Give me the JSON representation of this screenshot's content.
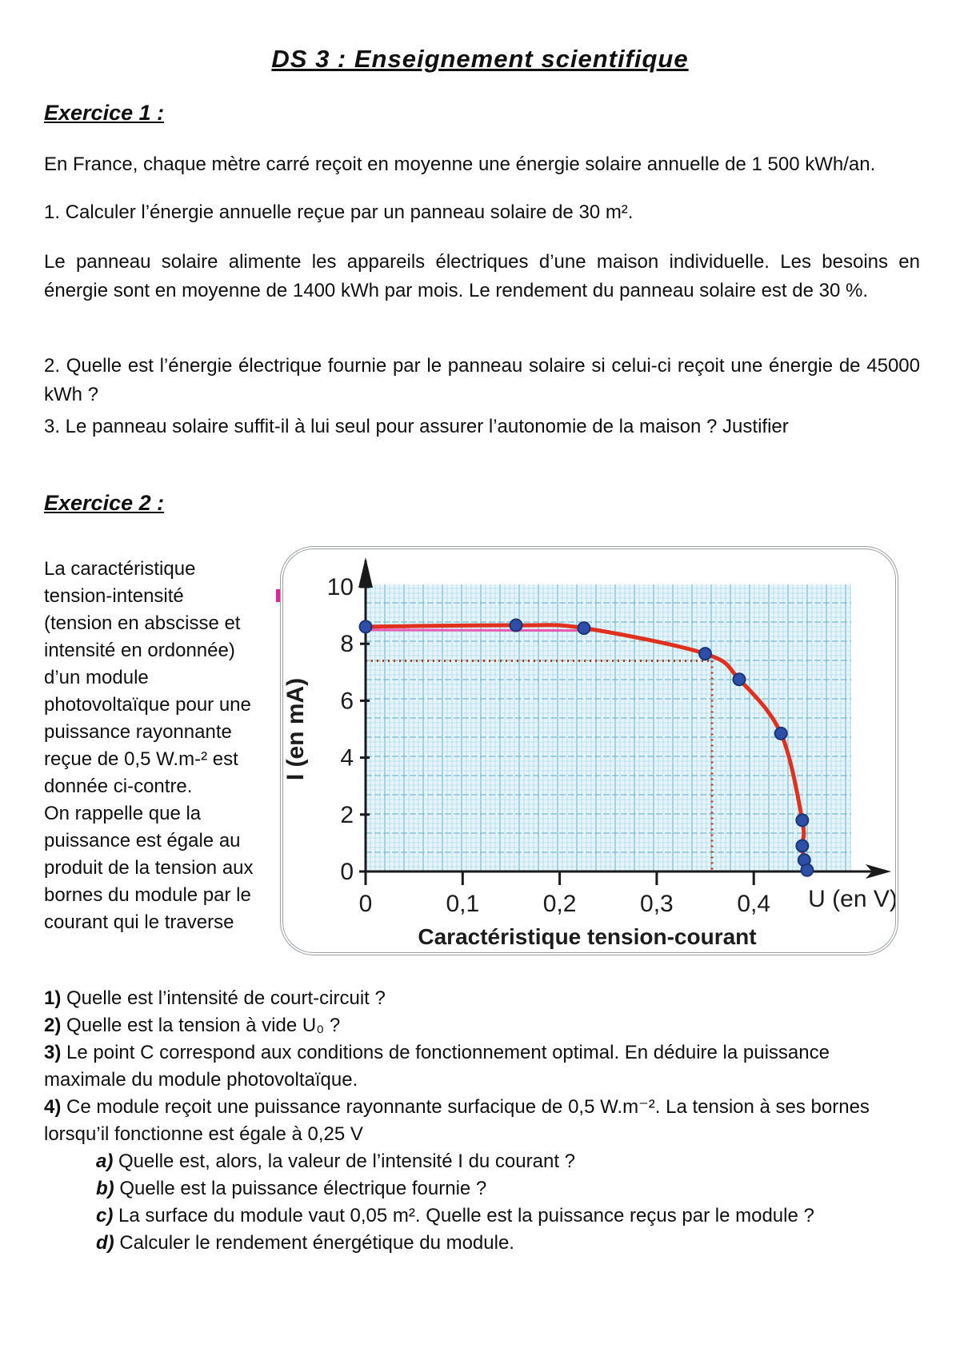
{
  "title": "DS 3 : Enseignement scientifique",
  "exercise1": {
    "heading": "Exercice 1 :",
    "intro": "En France, chaque mètre carré reçoit en moyenne une énergie solaire annuelle de 1 500 kWh/an.",
    "q1": "1. Calculer l’énergie annuelle reçue par un panneau solaire de 30 m².",
    "para2": "Le panneau solaire alimente les appareils électriques d’une maison individuelle. Les besoins en énergie sont en moyenne de 1400 kWh par mois. Le rendement du panneau solaire est de 30 %.",
    "q2": "2. Quelle est l’énergie électrique fournie par le panneau solaire si celui-ci reçoit une énergie de 45000 kWh ?",
    "q3": "3. Le panneau solaire suffit-il à lui seul pour assurer l’autonomie de la maison ? Justifier"
  },
  "exercise2": {
    "heading": "Exercice 2 :",
    "side_lines": [
      "La caractéristique",
      "tension-intensité",
      "(tension en abscisse et",
      "intensité en ordonnée)",
      "d’un module",
      "photovoltaïque pour une",
      "puissance rayonnante",
      "reçue de 0,5 W.m-² est",
      "donnée ci-contre.",
      "On rappelle que la",
      "puissance est égale au",
      "produit de la tension aux",
      "bornes du module par le",
      "courant qui le traverse"
    ],
    "questions": [
      {
        "prefix": "1)",
        "line1": "Quelle est l’intensité de court-circuit ?",
        "line2": ""
      },
      {
        "prefix": "2)",
        "line1": "Quelle est la tension à vide U₀ ?",
        "line2": ""
      },
      {
        "prefix": "3)",
        "line1": "Le point C correspond aux conditions de fonctionnement optimal. En déduire la puissance",
        "line2": "maximale du module photovoltaïque."
      },
      {
        "prefix": "4)",
        "line1": "Ce module reçoit une puissance rayonnante surfacique de 0,5 W.m⁻². La tension à ses bornes",
        "line2": "lorsqu’il fonctionne est égale à 0,25 V"
      }
    ],
    "subquestions": [
      {
        "prefix": "a)",
        "text": "Quelle est, alors, la valeur de l’intensité I du courant ?"
      },
      {
        "prefix": "b)",
        "text": "Quelle est la puissance électrique fournie ?"
      },
      {
        "prefix": "c)",
        "text": "La surface du module vaut 0,05 m². Quelle est la puissance reçus par le module ?"
      },
      {
        "prefix": "d)",
        "text": "Calculer le rendement énergétique du module."
      }
    ]
  },
  "chart_data": {
    "type": "line",
    "title": "Caractéristique tension-courant",
    "xlabel": "U (en V)",
    "ylabel": "I (en mA)",
    "xlim": [
      0,
      0.47
    ],
    "ylim": [
      0,
      10.5
    ],
    "grid": true,
    "x_ticks": [
      [
        0,
        "0"
      ],
      [
        0.1,
        "0,1"
      ],
      [
        0.2,
        "0,2"
      ],
      [
        0.3,
        "0,3"
      ],
      [
        0.4,
        "0,4"
      ]
    ],
    "y_ticks": [
      [
        0,
        "0"
      ],
      [
        2,
        "2"
      ],
      [
        4,
        "4"
      ],
      [
        6,
        "6"
      ],
      [
        8,
        "8"
      ],
      [
        10,
        "10"
      ]
    ],
    "points": [
      [
        0,
        8.6
      ],
      [
        0.155,
        8.65
      ],
      [
        0.225,
        8.55
      ],
      [
        0.35,
        7.65
      ],
      [
        0.385,
        6.75
      ],
      [
        0.428,
        4.85
      ],
      [
        0.45,
        1.8
      ],
      [
        0.45,
        0.9
      ],
      [
        0.452,
        0.4
      ],
      [
        0.455,
        0.05
      ]
    ],
    "short_circuit_current_mA": 8.6,
    "open_circuit_voltage_V": 0.45,
    "optimal_point_marker": {
      "U": 0.357,
      "I": 7.4
    },
    "colors": {
      "curve": "#e0301e",
      "curve_underlay": "#ef3fa8",
      "points": "#2d4fa8",
      "points_edge": "#1c3576",
      "dotted": "#bb3a18",
      "grid_bg": "#e7f4fa",
      "grid_line": "#aedcec",
      "grid_major": "#74b9d4",
      "axis": "#1a1a1a",
      "tick_text": "#1c1c1c"
    }
  }
}
